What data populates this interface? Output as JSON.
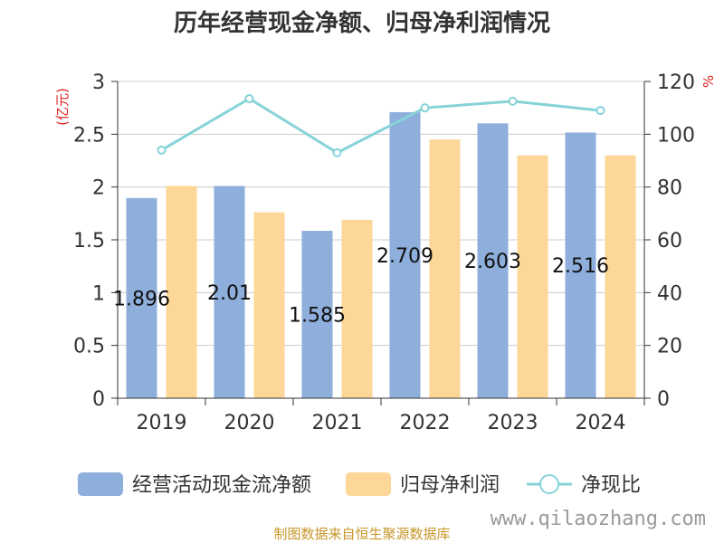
{
  "chart_data": {
    "type": "bar",
    "title": "历年经营现金净额、归母净利润情况",
    "categories": [
      "2019",
      "2020",
      "2021",
      "2022",
      "2023",
      "2024"
    ],
    "y_left": {
      "unit": "(亿元)",
      "ylim": [
        0,
        3
      ],
      "ticks": [
        "0",
        "0.5",
        "1",
        "1.5",
        "2",
        "2.5",
        "3"
      ]
    },
    "y_right": {
      "unit": "%",
      "ylim": [
        0,
        120
      ],
      "ticks": [
        "0",
        "20",
        "40",
        "60",
        "80",
        "100",
        "120"
      ]
    },
    "series": [
      {
        "name": "经营活动现金流净额",
        "type": "bar",
        "axis": "left",
        "color": "#8eaedb",
        "values": [
          1.896,
          2.01,
          1.585,
          2.709,
          2.603,
          2.516
        ],
        "labels": [
          "1.896",
          "2.01",
          "1.585",
          "2.709",
          "2.603",
          "2.516"
        ]
      },
      {
        "name": "归母净利润",
        "type": "bar",
        "axis": "left",
        "color": "#fdd797",
        "values": [
          2.01,
          1.76,
          1.69,
          2.45,
          2.3,
          2.3
        ]
      },
      {
        "name": "净现比",
        "type": "line",
        "axis": "right",
        "color": "#86d3d8",
        "values": [
          94,
          113.5,
          93,
          110,
          112.5,
          109
        ]
      }
    ],
    "grid": true,
    "legend_position": "bottom"
  },
  "footer": {
    "source": "制图数据来自恒生聚源数据库",
    "watermark": "www.qilaozhang.com"
  }
}
